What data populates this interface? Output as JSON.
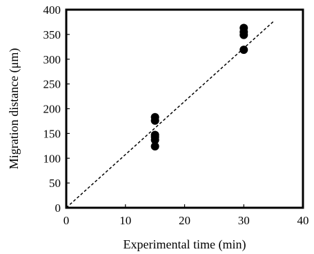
{
  "chart_data": {
    "type": "scatter",
    "title": "",
    "xlabel": "Experimental time (min)",
    "ylabel": "Migration distance (μm)",
    "xlim": [
      0,
      40
    ],
    "ylim": [
      0,
      400
    ],
    "xticks": [
      0,
      10,
      20,
      30,
      40
    ],
    "yticks": [
      0,
      50,
      100,
      150,
      200,
      250,
      300,
      350,
      400
    ],
    "grid": false,
    "legend": "none",
    "series": [
      {
        "marker": "circle",
        "color": "#000000",
        "points": [
          {
            "x": 15,
            "y": 183
          },
          {
            "x": 15,
            "y": 176
          },
          {
            "x": 15,
            "y": 147
          },
          {
            "x": 15,
            "y": 143
          },
          {
            "x": 15,
            "y": 137
          },
          {
            "x": 15,
            "y": 124
          },
          {
            "x": 30,
            "y": 363
          },
          {
            "x": 30,
            "y": 355
          },
          {
            "x": 30,
            "y": 349
          },
          {
            "x": 30,
            "y": 319
          }
        ]
      }
    ],
    "trendline": {
      "style": "dashed",
      "color": "#000000",
      "from": {
        "x": 0,
        "y": 0
      },
      "to": {
        "x": 35,
        "y": 376
      }
    }
  }
}
